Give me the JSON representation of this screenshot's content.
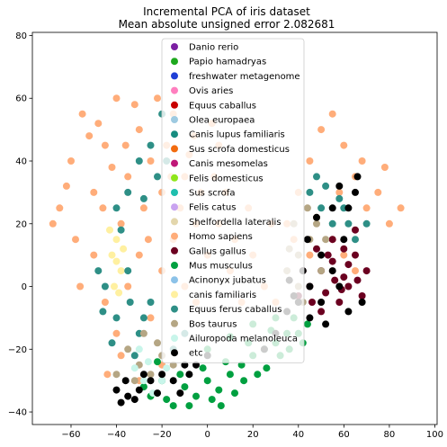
{
  "chart_data": {
    "type": "scatter",
    "title": "Incremental PCA of iris dataset",
    "subtitle": "Mean absolute unsigned error 2.082681",
    "xlabel": "",
    "ylabel": "",
    "xlim": [
      -77,
      101
    ],
    "ylim": [
      -44,
      81
    ],
    "x_ticks": [
      -60,
      -40,
      -20,
      0,
      20,
      40,
      60,
      80,
      100
    ],
    "y_ticks": [
      -40,
      -20,
      0,
      20,
      40,
      60,
      80
    ],
    "grid": false,
    "legend_placement": "top-center",
    "series": [
      {
        "name": "Danio rerio",
        "color": "#7b1fa2",
        "points": []
      },
      {
        "name": "Papio hamadryas",
        "color": "#1ea81e",
        "points": []
      },
      {
        "name": "freshwater metagenome",
        "color": "#1f3fd6",
        "points": []
      },
      {
        "name": "Ovis aries",
        "color": "#ff7fbf",
        "points": []
      },
      {
        "name": "Equus caballus",
        "color": "#c80000",
        "points": []
      },
      {
        "name": "Olea europaea",
        "color": "#9ecae1",
        "points": []
      },
      {
        "name": "Canis lupus familiaris",
        "color": "#178c80",
        "points": []
      },
      {
        "name": "Sus scrofa domesticus",
        "color": "#f26b0f",
        "points": []
      },
      {
        "name": "Canis mesomelas",
        "color": "#bf1878",
        "points": []
      },
      {
        "name": "Felis domesticus",
        "color": "#8fe61a",
        "points": []
      },
      {
        "name": "Sus scrofa",
        "color": "#1fbfae",
        "points": []
      },
      {
        "name": "Felis catus",
        "color": "#c9a3f0",
        "points": []
      },
      {
        "name": "Shelfordella lateralis",
        "color": "#e3d6ac",
        "points": []
      },
      {
        "name": "Homo sapiens",
        "color": "#ffad7a",
        "points": [
          [
            -65,
            25
          ],
          [
            -60,
            40
          ],
          [
            -55,
            55
          ],
          [
            -50,
            30
          ],
          [
            -45,
            45
          ],
          [
            -40,
            60
          ],
          [
            -35,
            35
          ],
          [
            -30,
            50
          ],
          [
            -25,
            40
          ],
          [
            -22,
            60
          ],
          [
            -20,
            30
          ],
          [
            -18,
            45
          ],
          [
            -15,
            55
          ],
          [
            -10,
            35
          ],
          [
            -8,
            42
          ],
          [
            -5,
            20
          ],
          [
            -50,
            10
          ],
          [
            -45,
            -5
          ],
          [
            -40,
            -15
          ],
          [
            -35,
            0
          ],
          [
            -30,
            10
          ],
          [
            -25,
            -10
          ],
          [
            -20,
            5
          ],
          [
            -15,
            15
          ],
          [
            -10,
            0
          ],
          [
            -5,
            -5
          ],
          [
            0,
            10
          ],
          [
            5,
            20
          ],
          [
            10,
            5
          ],
          [
            15,
            -5
          ],
          [
            20,
            10
          ],
          [
            25,
            0
          ],
          [
            30,
            -5
          ],
          [
            35,
            20
          ],
          [
            40,
            30
          ],
          [
            45,
            40
          ],
          [
            50,
            50
          ],
          [
            55,
            55
          ],
          [
            60,
            45
          ],
          [
            65,
            35
          ],
          [
            70,
            25
          ],
          [
            75,
            30
          ],
          [
            80,
            20
          ],
          [
            85,
            25
          ],
          [
            55,
            15
          ],
          [
            60,
            10
          ],
          [
            65,
            5
          ],
          [
            45,
            10
          ],
          [
            -58,
            15
          ],
          [
            -48,
            52
          ],
          [
            -38,
            20
          ],
          [
            -28,
            25
          ],
          [
            -12,
            25
          ],
          [
            -3,
            30
          ],
          [
            3,
            35
          ],
          [
            8,
            30
          ],
          [
            -62,
            32
          ],
          [
            -42,
            38
          ],
          [
            -32,
            58
          ],
          [
            -52,
            48
          ],
          [
            58,
            30
          ],
          [
            68,
            40
          ],
          [
            78,
            38
          ],
          [
            48,
            22
          ],
          [
            38,
            15
          ],
          [
            28,
            20
          ],
          [
            18,
            25
          ],
          [
            12,
            15
          ],
          [
            -68,
            20
          ],
          [
            -56,
            0
          ],
          [
            -46,
            25
          ],
          [
            -36,
            45
          ],
          [
            -26,
            15
          ],
          [
            -16,
            35
          ],
          [
            -6,
            48
          ],
          [
            5,
            45
          ],
          [
            2,
            52
          ],
          [
            -44,
            -28
          ],
          [
            -30,
            -30
          ],
          [
            -20,
            -25
          ],
          [
            -38,
            -22
          ]
        ]
      },
      {
        "name": "Gallus gallus",
        "color": "#6b0020",
        "points": [
          [
            50,
            5
          ],
          [
            55,
            8
          ],
          [
            60,
            3
          ],
          [
            65,
            10
          ],
          [
            70,
            5
          ],
          [
            45,
            0
          ],
          [
            52,
            -2
          ],
          [
            58,
            -5
          ],
          [
            62,
            0
          ],
          [
            68,
            -3
          ],
          [
            48,
            12
          ],
          [
            55,
            15
          ],
          [
            60,
            12
          ],
          [
            65,
            18
          ],
          [
            42,
            5
          ],
          [
            50,
            -8
          ],
          [
            56,
            2
          ],
          [
            62,
            7
          ],
          [
            40,
            -3
          ],
          [
            46,
            -5
          ],
          [
            53,
            10
          ],
          [
            59,
            -1
          ],
          [
            66,
            2
          ]
        ]
      },
      {
        "name": "Mus musculus",
        "color": "#00a040",
        "points": [
          [
            -25,
            -35
          ],
          [
            -20,
            -30
          ],
          [
            -15,
            -38
          ],
          [
            -10,
            -32
          ],
          [
            -5,
            -35
          ],
          [
            0,
            -30
          ],
          [
            5,
            -33
          ],
          [
            10,
            -28
          ],
          [
            15,
            -25
          ],
          [
            20,
            -22
          ],
          [
            25,
            -20
          ],
          [
            30,
            -18
          ],
          [
            35,
            -15
          ],
          [
            40,
            -15
          ],
          [
            -18,
            -36
          ],
          [
            -8,
            -38
          ],
          [
            2,
            -36
          ],
          [
            12,
            -34
          ],
          [
            22,
            -28
          ],
          [
            32,
            -22
          ],
          [
            42,
            -18
          ],
          [
            -12,
            -28
          ],
          [
            -2,
            -26
          ],
          [
            8,
            -24
          ],
          [
            18,
            -18
          ],
          [
            28,
            -14
          ],
          [
            38,
            -10
          ],
          [
            44,
            -12
          ],
          [
            -28,
            -32
          ],
          [
            6,
            -38
          ],
          [
            16,
            -30
          ],
          [
            26,
            -26
          ],
          [
            36,
            -20
          ],
          [
            -22,
            -24
          ],
          [
            0,
            -20
          ],
          [
            10,
            -16
          ],
          [
            20,
            -12
          ],
          [
            30,
            -10
          ]
        ]
      },
      {
        "name": "Acinonyx jubatus",
        "color": "#8cc2e8",
        "points": []
      },
      {
        "name": "canis familiaris",
        "color": "#fff0a0",
        "points": [
          [
            -40,
            15
          ],
          [
            -42,
            10
          ],
          [
            -38,
            5
          ],
          [
            -41,
            0
          ],
          [
            -39,
            -2
          ],
          [
            -43,
            18
          ],
          [
            -40,
            8
          ],
          [
            -37,
            12
          ]
        ]
      },
      {
        "name": "Equus ferus caballus",
        "color": "#2e8f86",
        "points": [
          [
            -45,
            0
          ],
          [
            -40,
            -10
          ],
          [
            -35,
            5
          ],
          [
            -30,
            -15
          ],
          [
            -25,
            -5
          ],
          [
            -40,
            25
          ],
          [
            -35,
            30
          ],
          [
            -30,
            40
          ],
          [
            -25,
            45
          ],
          [
            -20,
            55
          ],
          [
            -22,
            35
          ],
          [
            -18,
            40
          ],
          [
            45,
            30
          ],
          [
            50,
            25
          ],
          [
            55,
            20
          ],
          [
            60,
            25
          ],
          [
            65,
            15
          ],
          [
            70,
            20
          ],
          [
            48,
            35
          ],
          [
            58,
            28
          ],
          [
            -48,
            5
          ],
          [
            -42,
            -18
          ],
          [
            -32,
            -22
          ],
          [
            -28,
            -10
          ],
          [
            -15,
            -20
          ],
          [
            -10,
            -15
          ],
          [
            -38,
            18
          ],
          [
            -28,
            28
          ],
          [
            -34,
            -5
          ],
          [
            -46,
            -8
          ],
          [
            52,
            32
          ],
          [
            62,
            20
          ]
        ]
      },
      {
        "name": "Bos taurus",
        "color": "#b5a684",
        "points": [
          [
            -30,
            -25
          ],
          [
            -25,
            -28
          ],
          [
            -20,
            -22
          ],
          [
            -15,
            -25
          ],
          [
            -35,
            -20
          ],
          [
            -28,
            -15
          ],
          [
            -22,
            -18
          ],
          [
            40,
            10
          ],
          [
            45,
            15
          ],
          [
            50,
            5
          ],
          [
            35,
            5
          ],
          [
            42,
            -5
          ],
          [
            38,
            20
          ],
          [
            44,
            25
          ],
          [
            -40,
            -28
          ],
          [
            -32,
            -30
          ],
          [
            48,
            20
          ],
          [
            52,
            15
          ],
          [
            36,
            12
          ],
          [
            40,
            0
          ]
        ]
      },
      {
        "name": "Ailuropoda melanoleuca",
        "color": "#c8f5ea",
        "points": [
          [
            -28,
            -30
          ],
          [
            -32,
            -26
          ],
          [
            -24,
            -34
          ],
          [
            -20,
            -30
          ],
          [
            -30,
            -20
          ],
          [
            -26,
            -24
          ],
          [
            -18,
            -26
          ]
        ]
      },
      {
        "name": "etc",
        "color": "#000000",
        "points": [
          [
            -35,
            -35
          ],
          [
            -30,
            -33
          ],
          [
            -25,
            -30
          ],
          [
            -20,
            -28
          ],
          [
            -15,
            -30
          ],
          [
            -10,
            -25
          ],
          [
            -5,
            -25
          ],
          [
            0,
            -22
          ],
          [
            -38,
            -37
          ],
          [
            -32,
            -36
          ],
          [
            -28,
            -28
          ],
          [
            -22,
            -34
          ],
          [
            -12,
            -34
          ],
          [
            -8,
            -28
          ],
          [
            40,
            -5
          ],
          [
            45,
            0
          ],
          [
            50,
            -5
          ],
          [
            55,
            5
          ],
          [
            60,
            15
          ],
          [
            62,
            25
          ],
          [
            65,
            30
          ],
          [
            66,
            35
          ],
          [
            55,
            25
          ],
          [
            58,
            32
          ],
          [
            48,
            22
          ],
          [
            50,
            10
          ],
          [
            42,
            5
          ],
          [
            38,
            -3
          ],
          [
            35,
            -8
          ],
          [
            30,
            -15
          ],
          [
            25,
            -20
          ],
          [
            45,
            -10
          ],
          [
            62,
            -8
          ],
          [
            68,
            -5
          ],
          [
            52,
            -12
          ],
          [
            58,
            0
          ],
          [
            44,
            15
          ],
          [
            36,
            2
          ],
          [
            -40,
            -33
          ],
          [
            -36,
            -30
          ]
        ]
      }
    ]
  }
}
